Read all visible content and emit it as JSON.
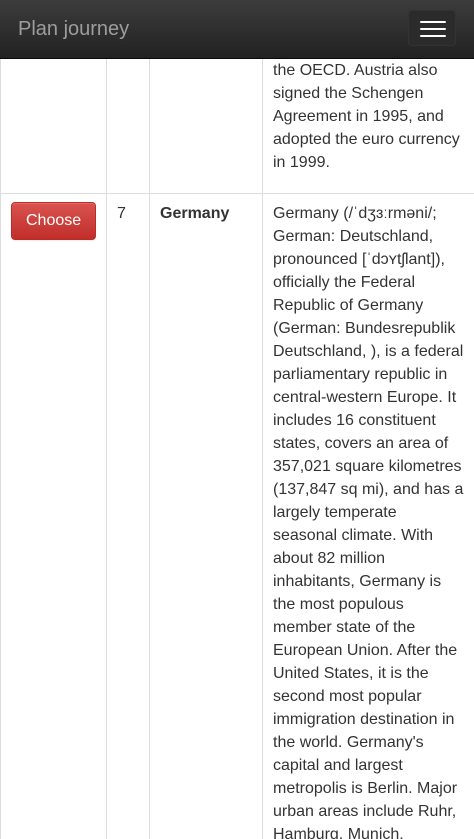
{
  "navbar": {
    "brand": "Plan journey",
    "toggle_icon": "hamburger-menu-icon"
  },
  "table": {
    "previous_row_tail": "the OECD. Austria also signed the Schengen Agreement in 1995, and adopted the euro currency in 1999.",
    "rows": [
      {
        "button_label": "Choose",
        "number": "7",
        "name": "Germany",
        "description": "Germany (/ˈdʒɜːrməni/; German: Deutschland, pronounced [ˈdɔʏtʃlant]), officially the Federal Republic of Germany (German: Bundesrepublik Deutschland, ), is a federal parliamentary republic in central-western Europe. It includes 16 constituent states, covers an area of 357,021 square kilometres (137,847 sq mi), and has a largely temperate seasonal climate. With about 82 million inhabitants, Germany is the most populous member state of the European Union. After the United States, it is the second most popular immigration destination in the world. Germany's capital and largest metropolis is Berlin. Major urban areas include Ruhr, Hamburg, Munich, Cologne, Frankfurt and"
      }
    ]
  },
  "colors": {
    "navbar_bg": "#222222",
    "brand_text": "#9d9d9d",
    "button_danger": "#d9534f",
    "border": "#dddddd"
  }
}
